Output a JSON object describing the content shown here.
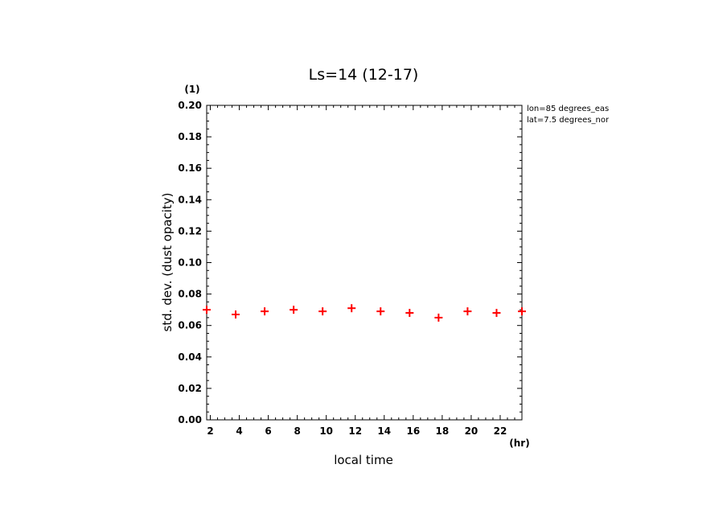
{
  "chart_data": {
    "type": "scatter",
    "title": "Ls=14 (12-17)",
    "xlabel": "local time",
    "ylabel": "std. dev. (dust opacity)",
    "x_unit": "(hr)",
    "y_unit": "(1)",
    "xlim": [
      1.75,
      23.5
    ],
    "ylim": [
      0,
      0.2
    ],
    "x_ticks": [
      2,
      4,
      6,
      8,
      10,
      12,
      14,
      16,
      18,
      20,
      22
    ],
    "y_ticks": [
      "0.00",
      "0.02",
      "0.04",
      "0.06",
      "0.08",
      "0.10",
      "0.12",
      "0.14",
      "0.16",
      "0.18",
      "0.20"
    ],
    "annotations": [
      "lon=85 degrees_eas",
      "lat=7.5 degrees_nor"
    ],
    "marker": "+",
    "color": "#ff0000",
    "series": [
      {
        "x": [
          1.75,
          3.75,
          5.75,
          7.75,
          9.75,
          11.75,
          13.75,
          15.75,
          17.75,
          19.75,
          21.75,
          23.5
        ],
        "y": [
          0.07,
          0.067,
          0.069,
          0.07,
          0.069,
          0.071,
          0.069,
          0.068,
          0.065,
          0.069,
          0.068,
          0.069
        ]
      }
    ]
  }
}
